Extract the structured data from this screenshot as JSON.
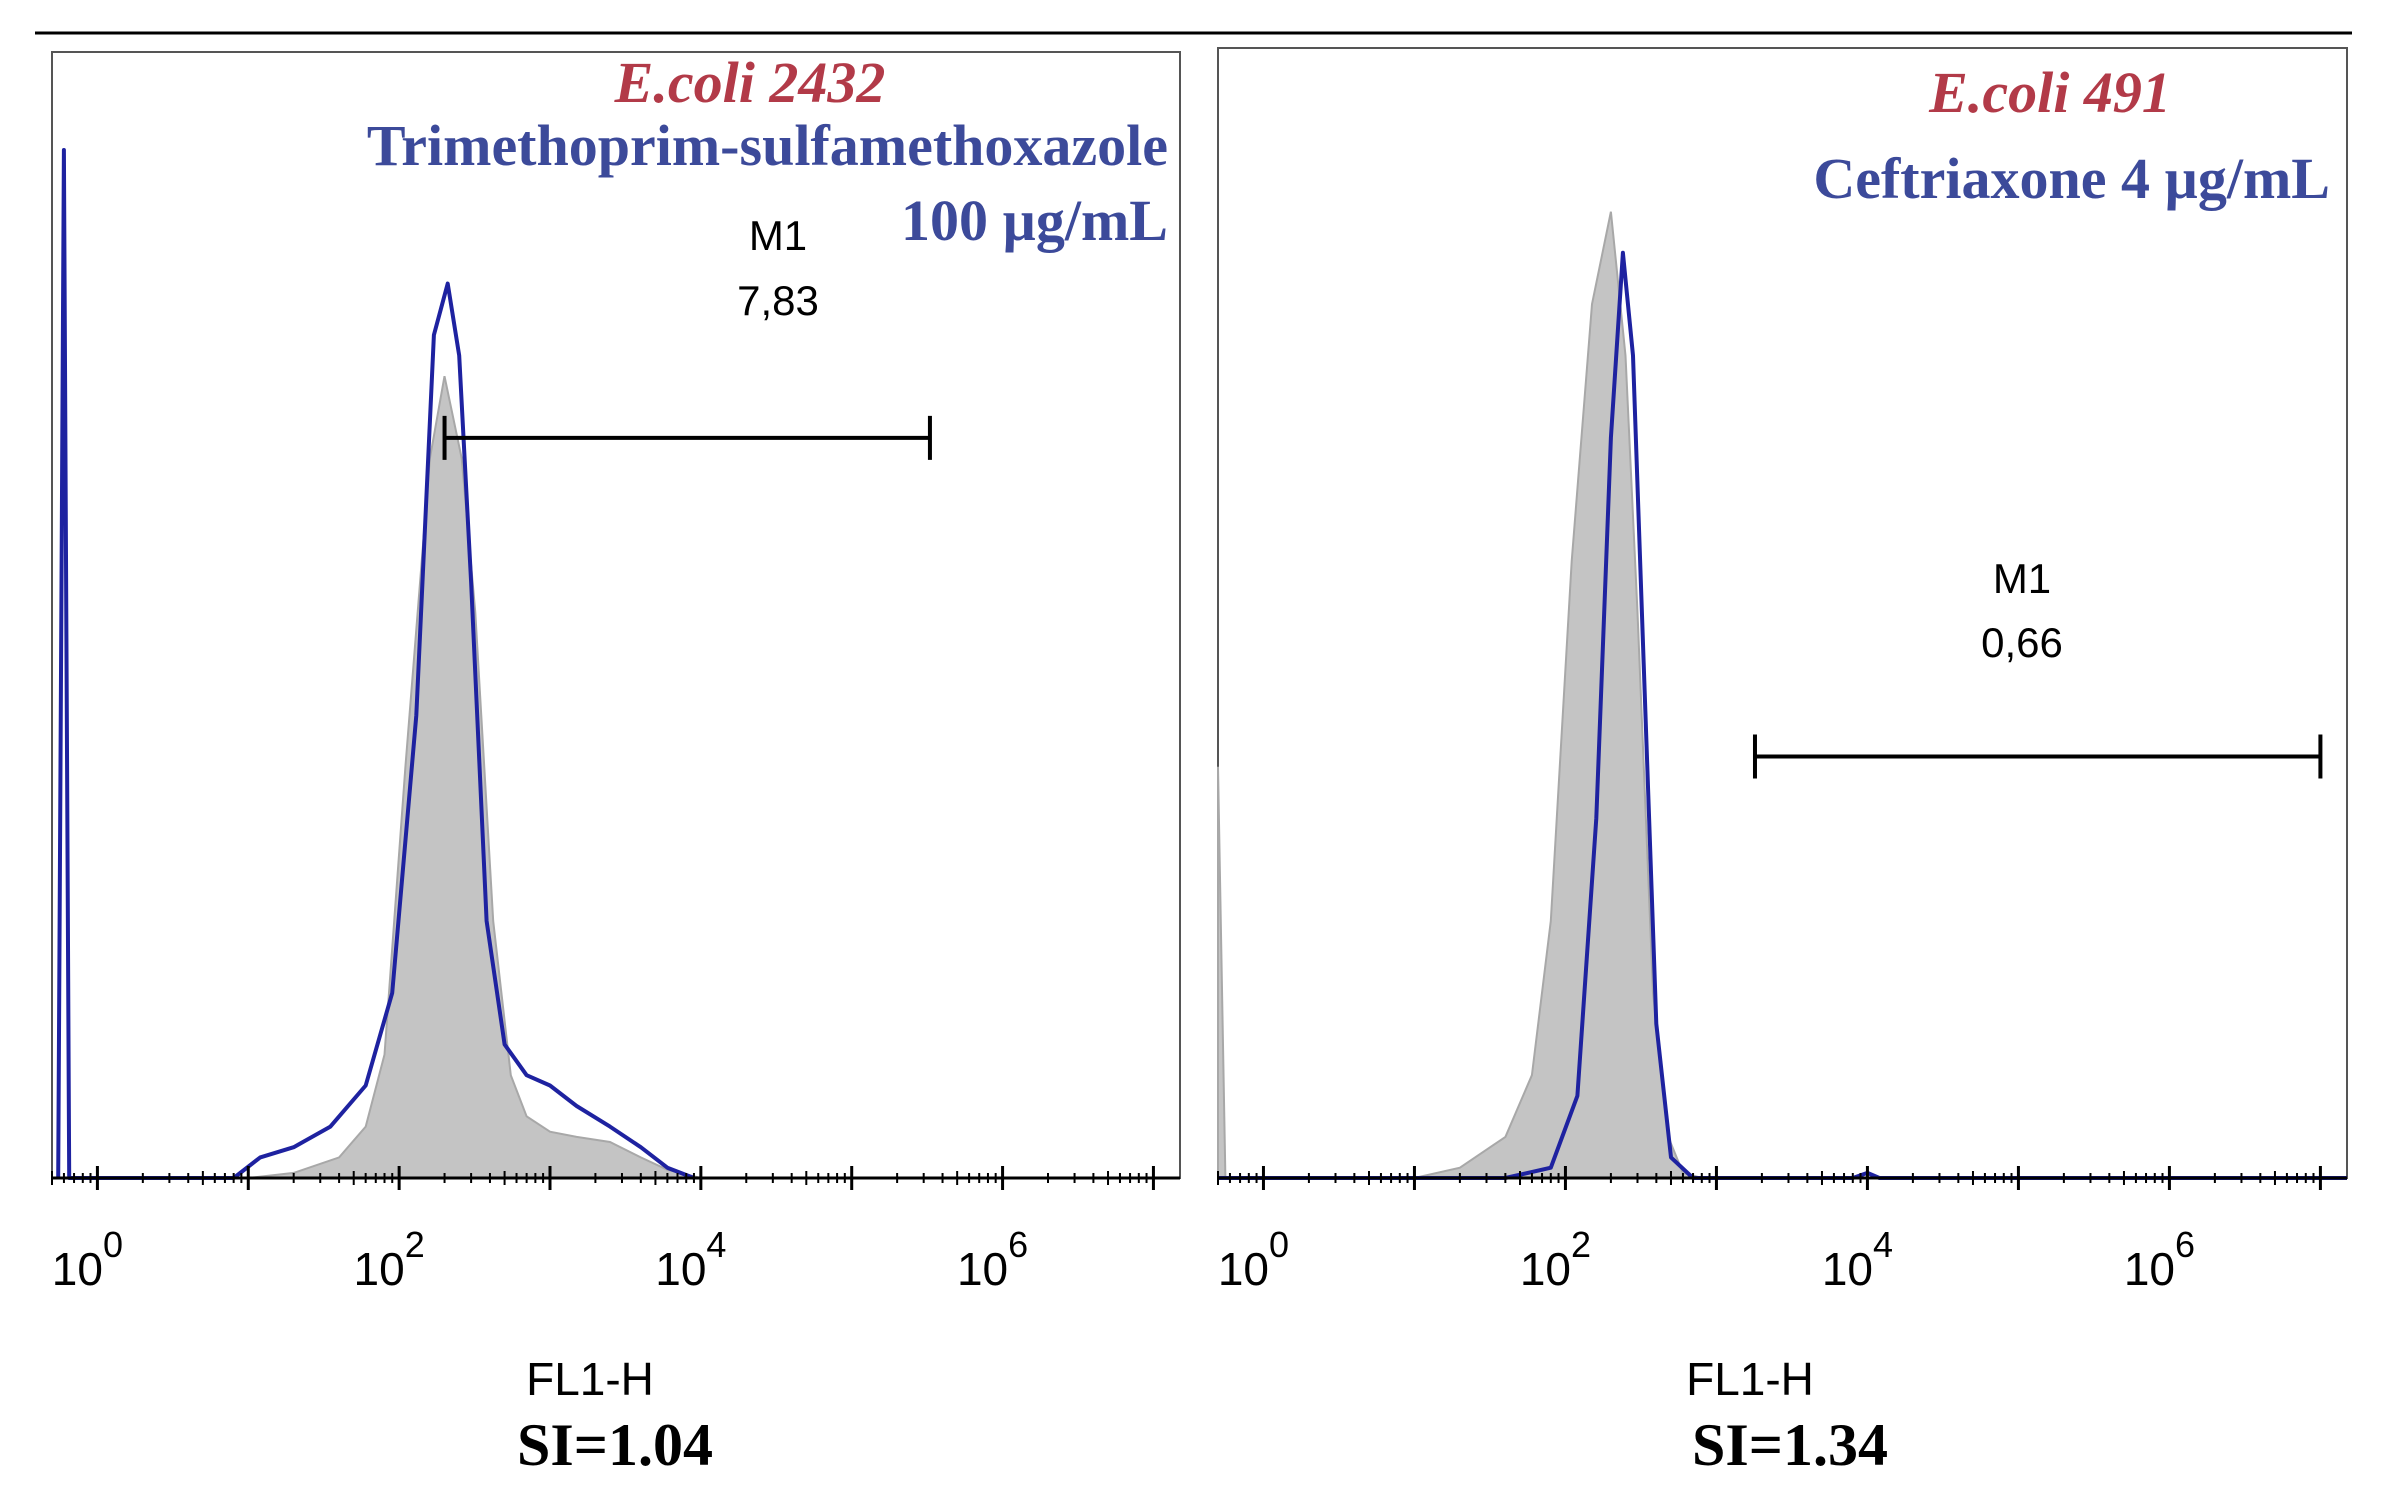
{
  "colors": {
    "title_red": "#b23a48",
    "title_blue": "#3c4a9a",
    "curve_blue": "#1e22a0",
    "fill_gray": "#c4c4c4",
    "edge_gray": "#a8a8a8",
    "axis": "#000000"
  },
  "chart_data": [
    {
      "type": "area",
      "title": "E.coli 2432",
      "subtitle_lines": [
        "Trimethoprim-sulfamethoxazole",
        "100 µg/mL"
      ],
      "xlabel": "FL1-H",
      "caption": "SI=1.04",
      "x_scale": "log",
      "xlim": [
        0.5,
        15000000
      ],
      "ylim": [
        0,
        1
      ],
      "x_ticks": [
        {
          "base": "10",
          "exp": "0",
          "value": 1
        },
        {
          "base": "10",
          "exp": "2",
          "value": 100
        },
        {
          "base": "10",
          "exp": "4",
          "value": 10000
        },
        {
          "base": "10",
          "exp": "6",
          "value": 1000000
        }
      ],
      "gate": {
        "name": "M1",
        "value_label": "7,83",
        "x_range": [
          200,
          330000
        ],
        "level": 0.72
      },
      "series": [
        {
          "style": "gray-filled",
          "points": [
            [
              1,
              0
            ],
            [
              10,
              0
            ],
            [
              20,
              0.005
            ],
            [
              40,
              0.02
            ],
            [
              60,
              0.05
            ],
            [
              80,
              0.12
            ],
            [
              110,
              0.4
            ],
            [
              160,
              0.7
            ],
            [
              200,
              0.78
            ],
            [
              260,
              0.7
            ],
            [
              320,
              0.55
            ],
            [
              420,
              0.25
            ],
            [
              550,
              0.1
            ],
            [
              700,
              0.06
            ],
            [
              1000,
              0.045
            ],
            [
              1500,
              0.04
            ],
            [
              2500,
              0.035
            ],
            [
              4000,
              0.02
            ],
            [
              6000,
              0.008
            ],
            [
              10000,
              0
            ]
          ]
        },
        {
          "style": "blue-outline",
          "points": [
            [
              0.55,
              0
            ],
            [
              0.6,
              1
            ],
            [
              0.65,
              0
            ],
            [
              8,
              0
            ],
            [
              12,
              0.02
            ],
            [
              20,
              0.03
            ],
            [
              35,
              0.05
            ],
            [
              60,
              0.09
            ],
            [
              90,
              0.18
            ],
            [
              130,
              0.45
            ],
            [
              170,
              0.82
            ],
            [
              210,
              0.87
            ],
            [
              250,
              0.8
            ],
            [
              300,
              0.58
            ],
            [
              380,
              0.25
            ],
            [
              500,
              0.13
            ],
            [
              700,
              0.1
            ],
            [
              1000,
              0.09
            ],
            [
              1500,
              0.07
            ],
            [
              2500,
              0.05
            ],
            [
              4000,
              0.03
            ],
            [
              6000,
              0.01
            ],
            [
              9000,
              0
            ]
          ]
        }
      ]
    },
    {
      "type": "area",
      "title": "E.coli 491",
      "subtitle_lines": [
        "Ceftriaxone 4 µg/mL"
      ],
      "xlabel": "FL1-H",
      "caption": "SI=1.34",
      "x_scale": "log",
      "xlim": [
        0.5,
        15000000
      ],
      "ylim": [
        0,
        1
      ],
      "x_ticks": [
        {
          "base": "10",
          "exp": "0",
          "value": 1
        },
        {
          "base": "10",
          "exp": "2",
          "value": 100
        },
        {
          "base": "10",
          "exp": "4",
          "value": 10000
        },
        {
          "base": "10",
          "exp": "6",
          "value": 1000000
        }
      ],
      "gate": {
        "name": "M1",
        "value_label": "0,66",
        "x_range": [
          1800,
          10000000
        ],
        "level": 0.41
      },
      "series": [
        {
          "style": "gray-filled",
          "points": [
            [
              0.5,
              0.4
            ],
            [
              0.56,
              0
            ],
            [
              10,
              0
            ],
            [
              20,
              0.01
            ],
            [
              40,
              0.04
            ],
            [
              60,
              0.1
            ],
            [
              80,
              0.25
            ],
            [
              110,
              0.6
            ],
            [
              150,
              0.85
            ],
            [
              200,
              0.94
            ],
            [
              250,
              0.8
            ],
            [
              300,
              0.55
            ],
            [
              380,
              0.18
            ],
            [
              480,
              0.04
            ],
            [
              600,
              0.005
            ],
            [
              800,
              0
            ]
          ]
        },
        {
          "style": "blue-outline",
          "points": [
            [
              0.5,
              0
            ],
            [
              40,
              0
            ],
            [
              80,
              0.01
            ],
            [
              120,
              0.08
            ],
            [
              160,
              0.35
            ],
            [
              200,
              0.72
            ],
            [
              240,
              0.9
            ],
            [
              280,
              0.8
            ],
            [
              330,
              0.5
            ],
            [
              400,
              0.15
            ],
            [
              500,
              0.02
            ],
            [
              700,
              0
            ],
            [
              8000,
              0
            ],
            [
              10000,
              0.005
            ],
            [
              12000,
              0
            ],
            [
              15000000,
              0
            ]
          ]
        }
      ]
    }
  ]
}
